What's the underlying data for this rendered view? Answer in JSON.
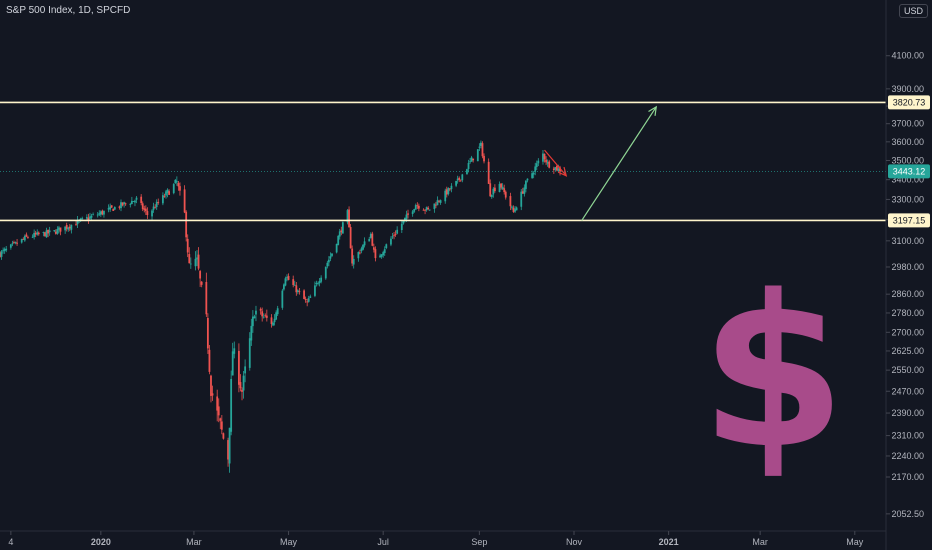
{
  "header": {
    "title": "S&P 500 Index, 1D, SPCFD",
    "currency": "USD"
  },
  "chart_data": {
    "type": "candlestick",
    "symbol": "S&P 500 Index",
    "interval": "1D",
    "source": "SPCFD",
    "y_axis": {
      "scale": "log",
      "range": [
        2000,
        4460
      ],
      "ticks": [
        4100.0,
        3900.0,
        3800.0,
        3700.0,
        3600.0,
        3500.0,
        3400.0,
        3300.0,
        3200.0,
        3100.0,
        2980.0,
        2860.0,
        2780.0,
        2700.0,
        2625.0,
        2550.0,
        2470.0,
        2390.0,
        2310.0,
        2240.0,
        2170.0,
        2052.5
      ],
      "tick_labels": [
        "4100.00",
        "3900.00",
        "",
        "3700.00",
        "3600.00",
        "3500.00",
        "3400.00",
        "3300.00",
        "",
        "3100.00",
        "2980.00",
        "2860.00",
        "2780.00",
        "2700.00",
        "2625.00",
        "2550.00",
        "2470.00",
        "2390.00",
        "2310.00",
        "2240.00",
        "2170.00",
        "2052.50"
      ],
      "position": "right"
    },
    "x_axis": {
      "ticks": [
        {
          "label": "4",
          "date": "2019-11-04"
        },
        {
          "label": "2020",
          "date": "2020-01-01"
        },
        {
          "label": "Mar",
          "date": "2020-03-01"
        },
        {
          "label": "May",
          "date": "2020-05-01"
        },
        {
          "label": "Jul",
          "date": "2020-07-01"
        },
        {
          "label": "Sep",
          "date": "2020-09-01"
        },
        {
          "label": "Nov",
          "date": "2020-11-01"
        },
        {
          "label": "2021",
          "date": "2021-01-01"
        },
        {
          "label": "Mar",
          "date": "2021-03-01"
        },
        {
          "label": "May",
          "date": "2021-05-01"
        }
      ]
    },
    "grid": false,
    "colors": {
      "up": "#26a69a",
      "down": "#ef5350",
      "horizontal_line": "#fff5cc",
      "arrow_down": "#e53935",
      "arrow_up": "#8fd694",
      "last_price": "#26a69a",
      "dollar": "#a84b8a"
    },
    "price_series": [
      {
        "date": "2019-10-28",
        "close": 3040
      },
      {
        "date": "2019-11-15",
        "close": 3120
      },
      {
        "date": "2019-12-01",
        "close": 3140
      },
      {
        "date": "2019-12-31",
        "close": 3230
      },
      {
        "date": "2020-01-24",
        "close": 3300
      },
      {
        "date": "2020-01-31",
        "close": 3225
      },
      {
        "date": "2020-02-19",
        "close": 3386
      },
      {
        "date": "2020-02-24",
        "close": 3225
      },
      {
        "date": "2020-02-27",
        "close": 2980
      },
      {
        "date": "2020-03-03",
        "close": 3003
      },
      {
        "date": "2020-03-09",
        "close": 2746
      },
      {
        "date": "2020-03-12",
        "close": 2480
      },
      {
        "date": "2020-03-16",
        "close": 2386
      },
      {
        "date": "2020-03-23",
        "close": 2237
      },
      {
        "date": "2020-03-26",
        "close": 2630
      },
      {
        "date": "2020-04-01",
        "close": 2470
      },
      {
        "date": "2020-04-09",
        "close": 2790
      },
      {
        "date": "2020-04-21",
        "close": 2737
      },
      {
        "date": "2020-04-29",
        "close": 2940
      },
      {
        "date": "2020-05-13",
        "close": 2820
      },
      {
        "date": "2020-05-29",
        "close": 3044
      },
      {
        "date": "2020-06-08",
        "close": 3232
      },
      {
        "date": "2020-06-11",
        "close": 3002
      },
      {
        "date": "2020-06-23",
        "close": 3131
      },
      {
        "date": "2020-06-26",
        "close": 3009
      },
      {
        "date": "2020-07-22",
        "close": 3276
      },
      {
        "date": "2020-07-30",
        "close": 3246
      },
      {
        "date": "2020-08-18",
        "close": 3390
      },
      {
        "date": "2020-09-02",
        "close": 3580
      },
      {
        "date": "2020-09-08",
        "close": 3331
      },
      {
        "date": "2020-09-14",
        "close": 3383
      },
      {
        "date": "2020-09-23",
        "close": 3237
      },
      {
        "date": "2020-10-01",
        "close": 3380
      },
      {
        "date": "2020-10-12",
        "close": 3534
      },
      {
        "date": "2020-10-15",
        "close": 3483
      },
      {
        "date": "2020-10-22",
        "close": 3453
      },
      {
        "date": "2020-10-26",
        "close": 3443
      }
    ],
    "horizontal_lines": [
      {
        "price": 3820.73,
        "label": "3820.73"
      },
      {
        "price": 3197.15,
        "label": "3197.15"
      }
    ],
    "last_price": {
      "price": 3443.12,
      "label": "3443.12"
    },
    "annotations": [
      {
        "type": "arrow",
        "direction": "down",
        "from": {
          "date": "2020-10-13",
          "price": 3555
        },
        "to": {
          "date": "2020-10-27",
          "price": 3420
        }
      },
      {
        "type": "arrow",
        "direction": "up",
        "from": {
          "date": "2020-11-06",
          "price": 3197.15
        },
        "to": {
          "date": "2020-12-24",
          "price": 3795
        }
      }
    ]
  }
}
